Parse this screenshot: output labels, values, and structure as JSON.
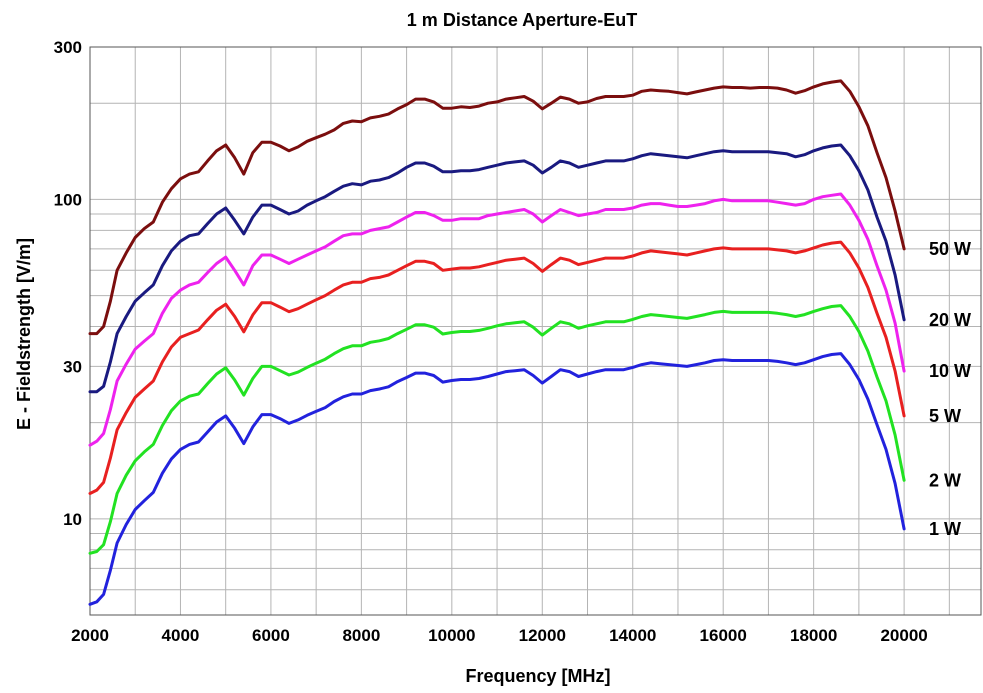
{
  "chart_data": {
    "type": "line",
    "title": "1 m Distance Aperture-EuT",
    "xlabel": "Frequency [MHz]",
    "ylabel": "E - Fieldstrength [V/m]",
    "xlim": [
      2000,
      21700
    ],
    "ylim": [
      5,
      300
    ],
    "yscale": "log",
    "grid": true,
    "x_ticks": [
      "2000",
      "4000",
      "6000",
      "8000",
      "10000",
      "12000",
      "14000",
      "16000",
      "18000",
      "20000"
    ],
    "y_ticks": [
      "10",
      "30",
      "100",
      "300"
    ],
    "x": [
      2000,
      2150,
      2300,
      2450,
      2600,
      2800,
      3000,
      3200,
      3400,
      3600,
      3800,
      4000,
      4200,
      4400,
      4600,
      4800,
      5000,
      5200,
      5400,
      5600,
      5800,
      6000,
      6200,
      6400,
      6600,
      6800,
      7000,
      7200,
      7400,
      7600,
      7800,
      8000,
      8200,
      8400,
      8600,
      8800,
      9000,
      9200,
      9400,
      9600,
      9800,
      10000,
      10200,
      10400,
      10600,
      10800,
      11000,
      11200,
      11400,
      11600,
      11800,
      12000,
      12200,
      12400,
      12600,
      12800,
      13000,
      13200,
      13400,
      13600,
      13800,
      14000,
      14200,
      14400,
      14600,
      14800,
      15000,
      15200,
      15400,
      15600,
      15800,
      16000,
      16200,
      16400,
      16600,
      16800,
      17000,
      17200,
      17400,
      17600,
      17800,
      18000,
      18200,
      18400,
      18600,
      18800,
      19000,
      19200,
      19400,
      19600,
      19800,
      20000
    ],
    "series": [
      {
        "name": "50 W",
        "color": "#7b0e0e",
        "values": [
          38,
          38,
          40,
          48,
          60,
          68,
          76,
          81,
          85,
          98,
          108,
          116,
          120,
          122,
          132,
          142,
          148,
          135,
          120,
          140,
          151,
          151,
          147,
          142,
          146,
          152,
          156,
          160,
          165,
          173,
          176,
          175,
          180,
          182,
          185,
          192,
          198,
          206,
          206,
          202,
          193,
          193,
          195,
          194,
          196,
          200,
          202,
          206,
          208,
          210,
          203,
          192,
          200,
          209,
          206,
          200,
          202,
          207,
          210,
          210,
          210,
          212,
          218,
          220,
          219,
          218,
          216,
          214,
          217,
          220,
          223,
          225,
          224,
          224,
          223,
          224,
          224,
          223,
          220,
          215,
          219,
          225,
          230,
          233,
          235,
          218,
          195,
          170,
          140,
          117,
          92,
          70
        ]
      },
      {
        "name": "20 W",
        "color": "#1a1a80",
        "values": [
          25,
          25,
          26,
          31,
          38,
          43,
          48,
          51,
          54,
          62,
          69,
          74,
          77,
          78,
          84,
          90,
          94,
          86,
          78,
          88,
          96,
          96,
          93,
          90,
          92,
          96,
          99,
          102,
          106,
          110,
          112,
          111,
          114,
          115,
          117,
          121,
          126,
          130,
          130,
          127,
          122,
          122,
          123,
          123,
          124,
          126,
          128,
          130,
          131,
          132,
          128,
          121,
          126,
          132,
          130,
          126,
          128,
          130,
          132,
          132,
          132,
          134,
          137,
          139,
          138,
          137,
          136,
          135,
          137,
          139,
          141,
          142,
          141,
          141,
          141,
          141,
          141,
          140,
          139,
          136,
          138,
          142,
          145,
          147,
          148,
          137,
          123,
          107,
          88,
          74,
          58,
          42
        ]
      },
      {
        "name": "10 W",
        "color": "#ee22ee",
        "values": [
          17,
          17.5,
          18.5,
          22,
          27,
          30.5,
          34,
          36,
          38,
          44,
          49,
          52,
          54,
          55,
          59,
          63,
          66,
          60,
          54,
          62,
          67,
          67,
          65,
          63,
          65,
          67,
          69,
          71,
          74,
          77,
          78,
          78,
          80,
          81,
          82,
          85,
          88,
          91,
          91,
          89,
          86,
          86,
          87,
          87,
          87,
          89,
          90,
          91,
          92,
          93,
          90,
          85,
          89,
          93,
          91,
          89,
          90,
          91,
          93,
          93,
          93,
          94,
          96,
          97,
          97,
          96,
          95,
          95,
          96,
          97,
          99,
          100,
          99,
          99,
          99,
          99,
          99,
          98,
          97,
          96,
          97,
          100,
          102,
          103,
          104,
          96,
          86,
          75,
          62,
          52,
          41,
          29
        ]
      },
      {
        "name": "5 W",
        "color": "#e82020",
        "values": [
          12,
          12.3,
          13,
          15.5,
          19,
          21.5,
          24,
          25.5,
          27,
          31,
          34.5,
          37,
          38,
          39,
          42,
          45,
          47,
          43,
          38.5,
          43.5,
          47.5,
          47.5,
          46,
          44.5,
          45.5,
          47,
          48.5,
          50,
          52,
          54,
          55,
          55,
          56.5,
          57,
          58,
          60,
          62,
          64,
          64,
          63,
          60,
          60.5,
          61,
          61,
          61.5,
          62.5,
          63.5,
          64.5,
          65,
          65.5,
          63,
          59.5,
          62.5,
          65.5,
          64.5,
          62.5,
          63.5,
          64.5,
          65.5,
          65.5,
          65.5,
          66.5,
          68,
          69,
          68.5,
          68,
          67.5,
          67,
          68,
          69,
          70,
          70.5,
          70,
          70,
          70,
          70,
          70,
          69.5,
          69,
          68,
          69,
          70.5,
          72,
          73,
          73.5,
          68,
          61,
          53,
          44,
          37,
          29,
          21
        ]
      },
      {
        "name": "2 W",
        "color": "#22e222",
        "values": [
          7.8,
          7.9,
          8.3,
          9.8,
          12,
          13.7,
          15.2,
          16.2,
          17.1,
          19.6,
          21.8,
          23.4,
          24.2,
          24.6,
          26.5,
          28.4,
          29.7,
          27.2,
          24.4,
          27.5,
          30,
          30,
          29.1,
          28.2,
          28.8,
          29.8,
          30.7,
          31.6,
          32.9,
          34.1,
          34.8,
          34.8,
          35.7,
          36.1,
          36.7,
          38,
          39.2,
          40.5,
          40.5,
          39.8,
          37.9,
          38.3,
          38.6,
          38.6,
          38.9,
          39.5,
          40.2,
          40.8,
          41.1,
          41.4,
          39.8,
          37.6,
          39.5,
          41.4,
          40.8,
          39.5,
          40.2,
          40.8,
          41.4,
          41.4,
          41.4,
          42.1,
          43,
          43.6,
          43.3,
          43,
          42.7,
          42.4,
          43,
          43.6,
          44.3,
          44.6,
          44.3,
          44.3,
          44.3,
          44.3,
          44.3,
          44,
          43.6,
          43,
          43.6,
          44.6,
          45.5,
          46.2,
          46.5,
          43,
          38.6,
          33.5,
          27.8,
          23.4,
          18.3,
          13.2
        ]
      },
      {
        "name": "1 W",
        "color": "#2222dd",
        "values": [
          5.4,
          5.5,
          5.8,
          6.9,
          8.4,
          9.6,
          10.7,
          11.4,
          12.1,
          13.9,
          15.4,
          16.5,
          17.1,
          17.4,
          18.7,
          20.1,
          21,
          19.2,
          17.2,
          19.4,
          21.2,
          21.2,
          20.6,
          19.9,
          20.4,
          21.1,
          21.7,
          22.3,
          23.3,
          24.1,
          24.6,
          24.6,
          25.2,
          25.5,
          25.9,
          26.9,
          27.7,
          28.6,
          28.6,
          28.1,
          26.8,
          27.1,
          27.3,
          27.3,
          27.5,
          27.9,
          28.4,
          28.9,
          29.1,
          29.3,
          28.1,
          26.6,
          27.9,
          29.3,
          28.9,
          27.9,
          28.4,
          28.9,
          29.3,
          29.3,
          29.3,
          29.8,
          30.4,
          30.8,
          30.6,
          30.4,
          30.2,
          30,
          30.4,
          30.8,
          31.3,
          31.5,
          31.3,
          31.3,
          31.3,
          31.3,
          31.3,
          31.1,
          30.8,
          30.4,
          30.8,
          31.5,
          32.2,
          32.7,
          32.9,
          30.4,
          27.3,
          23.7,
          19.7,
          16.5,
          12.9,
          9.3
        ]
      }
    ]
  }
}
